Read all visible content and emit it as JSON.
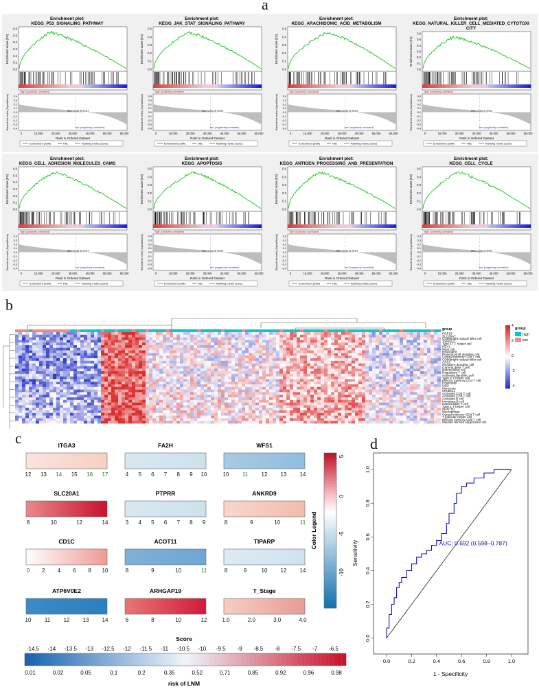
{
  "panels": {
    "a": "a",
    "b": "b",
    "c": "c",
    "d": "d"
  },
  "colors": {
    "es_line": "#22cc22",
    "high": "#00cccc",
    "low": "#f08a80",
    "heat_hi": "#e0202a",
    "heat_lo": "#2a3ad0",
    "nomo_hi": "#c8102e",
    "nomo_lo": "#1a6fb0",
    "roc": "#1010c8"
  },
  "gsea": {
    "title_prefix": "Enrichment plot:",
    "plots": [
      {
        "title": "KEGG_P53_SIGNALING_PATHWAY",
        "peak": 0.6,
        "yticks": [
          "0.6",
          "0.5",
          "0.4",
          "0.3",
          "0.2",
          "0.1",
          "0.0"
        ]
      },
      {
        "title": "KEGG_JAK_STAT_SIGNALING_PATHWAY",
        "peak": 0.55,
        "yticks": [
          "0.5",
          "0.4",
          "0.3",
          "0.2",
          "0.1",
          "0.0"
        ]
      },
      {
        "title": "KEGG_ARACHIDONIC_ACID_METABOLISM",
        "peak": 0.55,
        "yticks": [
          "0.5",
          "0.4",
          "0.3",
          "0.2",
          "0.1",
          "0.0"
        ]
      },
      {
        "title": "KEGG_NATURAL_KILLER_CELL_MEDIATED_CYTOTOXI CITY",
        "peak": 0.6,
        "yticks": [
          "0.6",
          "0.5",
          "0.4",
          "0.3",
          "0.2",
          "0.1",
          "0.0"
        ]
      },
      {
        "title": "KEGG_CELL_ADHESION_MOLECULES_CAMS",
        "peak": 0.6,
        "yticks": [
          "0.6",
          "0.5",
          "0.4",
          "0.3",
          "0.2",
          "0.1",
          "0.0"
        ]
      },
      {
        "title": "KEGG_APOPTOSIS",
        "peak": 0.5,
        "yticks": [
          "0.5",
          "0.4",
          "0.3",
          "0.2",
          "0.1",
          "0.0"
        ]
      },
      {
        "title": "KEGG_ANTIGEN_PROCESSING_AND_PRESENTATION",
        "peak": 0.55,
        "yticks": [
          "0.5",
          "0.4",
          "0.3",
          "0.2",
          "0.1",
          "0.0"
        ]
      },
      {
        "title": "KEGG_CELL_CYCLE",
        "peak": 0.5,
        "yticks": [
          "0.5",
          "0.4",
          "0.3",
          "0.2",
          "0.1",
          "0.0"
        ]
      }
    ],
    "ylabel_es": "Enrichment score (ES)",
    "ylabel_rank": "Ranked list metric (Signal2Noise)",
    "xlabel": "Rank in Ordered Dataset",
    "xticks": [
      "0",
      "10,000",
      "20,000",
      "30,000",
      "40,000",
      "50,000",
      "60,000"
    ],
    "rank_yticks": [
      "0.4",
      "0.3",
      "0.2",
      "0.1",
      "0.0",
      "-0.1",
      "-0.2",
      "-0.3",
      "-0.4"
    ],
    "pos_label": "'high' (positively correlated)",
    "neg_label": "'low' (negatively correlated)",
    "zero_cross": "Zero cross at 32111",
    "legend": [
      "Enrichment profile",
      "Hits",
      "Ranking metric scores"
    ]
  },
  "heatmap": {
    "rows": [
      "PGF19",
      "SLC20A7",
      "CD56bright natural killer cell",
      "TXNDC2",
      "Type 17 T helper cell",
      "HEY1",
      "Mast cell",
      "Neutrophil",
      "Plasmacytoid dendritic cell",
      "Central memory CD8 T cell",
      "CD56bright natural killer cell",
      "CPS3",
      "Immature dendritic cell",
      "Gamma delta T cell",
      "Natural killer cell",
      "Regulatory T cell",
      "Activated dendritic cell",
      "Type 2 T helper cell",
      "Effector memory CD4 T cell",
      "Eosinophil",
      "UBD",
      "Monocyte",
      "KIR3DL1",
      "Activated CD4 T cell",
      "Activated CD8 T cell",
      "Activated B cell",
      "Immature B cell",
      "Natural killer T cell",
      "Type 1 T helper cell",
      "MANTB1",
      "Macrophage",
      "Central memory CD4 T cell",
      "T follicular helper cell",
      "Effector memory CD8 T cell",
      "Myeloid derived suppressor cell"
    ],
    "legend_ticks": [
      "4",
      "2",
      "0",
      "-2",
      "-4"
    ],
    "group_title": "group",
    "group_levels": [
      "high",
      "low"
    ],
    "group_pattern": "LLLLHLLLLLLLLLLLHHLHHHHHHLHHHLHHHHLHHHLHHHHHLHHHHHHHHLHHHHHHLHHHHHLHHHHHHHHHHLHHHHHLHHHHHHLHHHHHLHHHHHHHHHLHHHHHLHHHHHHHHLHH"
  },
  "nomogram": {
    "variables": [
      {
        "name": "ITGA3",
        "ticks": [
          "12",
          "13",
          "14",
          "15",
          "16",
          "17"
        ],
        "tick_colors": [
          "#111",
          "#111",
          "#1a7a1a",
          "#111",
          "#1a7a1a",
          "#1a7a1a"
        ],
        "c1": "#fbe3dc",
        "c2": "#f6cfc4"
      },
      {
        "name": "FA2H",
        "ticks": [
          "4",
          "5",
          "6",
          "7",
          "8",
          "9",
          "10"
        ],
        "c1": "#d8e8f2",
        "c2": "#cde1ee"
      },
      {
        "name": "WFS1",
        "ticks": [
          "10",
          "11",
          "12",
          "13",
          "14"
        ],
        "tick_colors": [
          "#111",
          "#1a7a1a",
          "#111",
          "#111",
          "#111"
        ],
        "c1": "#a8cbe4",
        "c2": "#8fbddf"
      },
      {
        "name": "SLC20A1",
        "ticks": [
          "8",
          "10",
          "12",
          "14"
        ],
        "c1": "#e88a8a",
        "c2": "#c8102e"
      },
      {
        "name": "PTPRR",
        "ticks": [
          "3",
          "4",
          "5",
          "6",
          "7",
          "8",
          "9"
        ],
        "c1": "#d8e8f2",
        "c2": "#cde1ee"
      },
      {
        "name": "ANKRD9",
        "ticks": [
          "8",
          "9",
          "10",
          "11"
        ],
        "tick_colors": [
          "#111",
          "#111",
          "#111",
          "#1a7a1a"
        ],
        "c1": "#f9d6cc",
        "c2": "#f2bcae"
      },
      {
        "name": "CD1C",
        "ticks": [
          "0",
          "2",
          "4",
          "6",
          "8",
          "10"
        ],
        "tick_colors": [
          "#1a3ea0",
          "#111",
          "#111",
          "#111",
          "#111",
          "#111"
        ],
        "c1": "#ffffff",
        "c2": "#ef9a94"
      },
      {
        "name": "ACOT11",
        "ticks": [
          "8",
          "9",
          "10",
          "11"
        ],
        "tick_colors": [
          "#111",
          "#111",
          "#111",
          "#1a7a1a"
        ],
        "c1": "#7fb1d9",
        "c2": "#6ea6d4"
      },
      {
        "name": "TIPARP",
        "ticks": [
          "8",
          "9",
          "10",
          "12",
          "14"
        ],
        "c1": "#dcebf4",
        "c2": "#cfe3ef"
      },
      {
        "name": "ATP6V0E2",
        "ticks": [
          "10",
          "11",
          "12",
          "13",
          "14"
        ],
        "c1": "#3a8bc6",
        "c2": "#2c7fbe"
      },
      {
        "name": "ARHGAP19",
        "ticks": [
          "6",
          "8",
          "10",
          "12"
        ],
        "c1": "#e77777",
        "c2": "#d11a3a"
      },
      {
        "name": "T_Stage",
        "ticks": [
          "1.0",
          "2.0",
          "3.0",
          "4.0"
        ],
        "c1": "#f7cdc2",
        "c2": "#e89c96"
      }
    ],
    "color_legend_title": "Color Legend",
    "color_legend_ticks": [
      "5",
      "0",
      "-5",
      "-10"
    ],
    "score_title": "Score",
    "score_ticks": [
      "-14.5",
      "-14",
      "-13.5",
      "-13",
      "-12.5",
      "-12",
      "-11.5",
      "-11",
      "-10.5",
      "-10",
      "-9.5",
      "-9",
      "-8.5",
      "-8",
      "-7.5",
      "-7",
      "-6.5"
    ],
    "risk_ticks": [
      "0.01",
      "0.02",
      "0.05",
      "0.1",
      "0.2",
      "0.35",
      "0.52",
      "0.71",
      "0.85",
      "0.92",
      "0.96",
      "0.98"
    ],
    "risk_title": "risk of LNM"
  },
  "chart_data": [
    {
      "type": "line",
      "panel": "d",
      "xlabel": "1 - Specificity",
      "ylabel": "Sensitivity",
      "xlim": [
        -0.05,
        1.05
      ],
      "ylim": [
        -0.05,
        1.05
      ],
      "xticks": [
        "0.0",
        "0.2",
        "0.4",
        "0.6",
        "0.8",
        "1.0"
      ],
      "yticks": [
        "0.0",
        "0.2",
        "0.4",
        "0.6",
        "0.8",
        "1.0"
      ],
      "annotation": "AUC: 0.692 (0.598–0.787)",
      "series": [
        {
          "x": [
            0,
            0,
            0.02,
            0.02,
            0.04,
            0.04,
            0.06,
            0.06,
            0.08,
            0.08,
            0.1,
            0.1,
            0.12,
            0.12,
            0.16,
            0.16,
            0.2,
            0.2,
            0.24,
            0.24,
            0.28,
            0.28,
            0.32,
            0.32,
            0.36,
            0.36,
            0.4,
            0.4,
            0.44,
            0.44,
            0.48,
            0.48,
            0.5,
            0.5,
            0.54,
            0.54,
            0.56,
            0.56,
            0.6,
            0.6,
            0.64,
            0.64,
            0.7,
            0.7,
            0.78,
            0.78,
            0.86,
            0.86,
            1.0
          ],
          "y": [
            0,
            0.06,
            0.06,
            0.14,
            0.14,
            0.2,
            0.2,
            0.24,
            0.24,
            0.3,
            0.3,
            0.33,
            0.33,
            0.36,
            0.36,
            0.4,
            0.4,
            0.44,
            0.44,
            0.48,
            0.48,
            0.5,
            0.5,
            0.52,
            0.52,
            0.55,
            0.55,
            0.58,
            0.58,
            0.62,
            0.62,
            0.68,
            0.68,
            0.74,
            0.74,
            0.8,
            0.8,
            0.86,
            0.86,
            0.9,
            0.9,
            0.92,
            0.92,
            0.95,
            0.95,
            0.98,
            0.98,
            1.0,
            1.0
          ]
        },
        {
          "x": [
            0,
            1
          ],
          "y": [
            0,
            1
          ]
        }
      ]
    }
  ]
}
